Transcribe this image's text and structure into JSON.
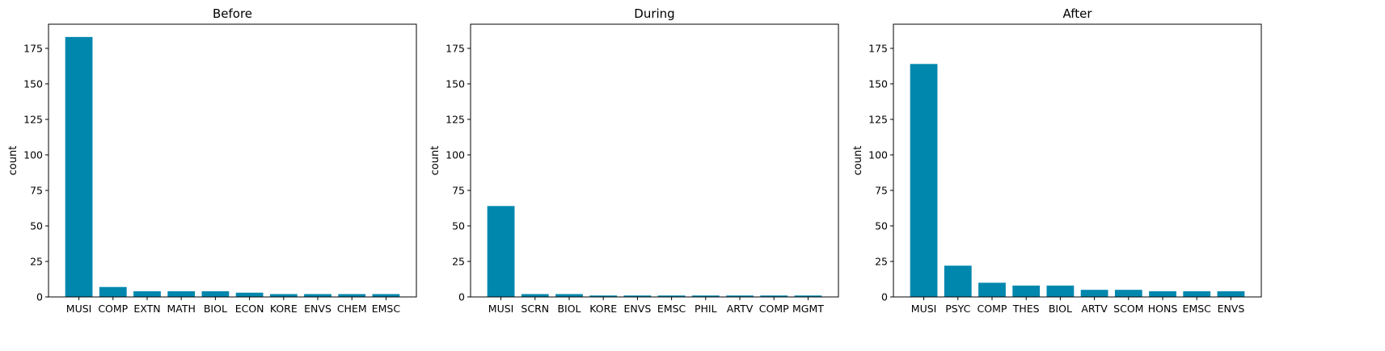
{
  "colors": {
    "bar": "#0087ae",
    "axis": "#000000",
    "background": "#ffffff"
  },
  "chart_data": [
    {
      "type": "bar",
      "title": "Before",
      "xlabel": "",
      "ylabel": "count",
      "ylim": [
        0,
        192
      ],
      "yticks": [
        0,
        25,
        50,
        75,
        100,
        125,
        150,
        175
      ],
      "categories": [
        "MUSI",
        "COMP",
        "EXTN",
        "MATH",
        "BIOL",
        "ECON",
        "KORE",
        "ENVS",
        "CHEM",
        "EMSC"
      ],
      "values": [
        183,
        7,
        4,
        4,
        4,
        3,
        2,
        2,
        2,
        2
      ],
      "grid": false
    },
    {
      "type": "bar",
      "title": "During",
      "xlabel": "",
      "ylabel": "count",
      "ylim": [
        0,
        192
      ],
      "yticks": [
        0,
        25,
        50,
        75,
        100,
        125,
        150,
        175
      ],
      "categories": [
        "MUSI",
        "SCRN",
        "BIOL",
        "KORE",
        "ENVS",
        "EMSC",
        "PHIL",
        "ARTV",
        "COMP",
        "MGMT"
      ],
      "values": [
        64,
        2,
        2,
        1,
        1,
        1,
        1,
        1,
        1,
        1
      ],
      "grid": false
    },
    {
      "type": "bar",
      "title": "After",
      "xlabel": "",
      "ylabel": "count",
      "ylim": [
        0,
        192
      ],
      "yticks": [
        0,
        25,
        50,
        75,
        100,
        125,
        150,
        175
      ],
      "categories": [
        "MUSI",
        "PSYC",
        "COMP",
        "THES",
        "BIOL",
        "ARTV",
        "SCOM",
        "HONS",
        "EMSC",
        "ENVS"
      ],
      "values": [
        164,
        22,
        10,
        8,
        8,
        5,
        5,
        4,
        4,
        4
      ],
      "grid": false
    }
  ]
}
